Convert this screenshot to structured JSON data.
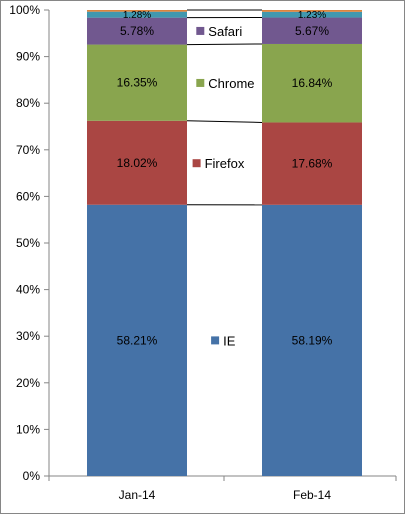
{
  "chart_data": {
    "type": "bar",
    "stacked": "percent",
    "categories": [
      "Jan-14",
      "Feb-14"
    ],
    "series": [
      {
        "name": "IE",
        "values": [
          58.21,
          58.19
        ],
        "labels": [
          "58.21%",
          "58.19%"
        ],
        "color": "#4572A7"
      },
      {
        "name": "Firefox",
        "values": [
          18.02,
          17.68
        ],
        "labels": [
          "18.02%",
          "17.68%"
        ],
        "color": "#AA4643"
      },
      {
        "name": "Chrome",
        "values": [
          16.35,
          16.84
        ],
        "labels": [
          "16.35%",
          "16.84%"
        ],
        "color": "#89A54E"
      },
      {
        "name": "Safari",
        "values": [
          5.78,
          5.67
        ],
        "labels": [
          "5.78%",
          "5.67%"
        ],
        "color": "#71588F"
      },
      {
        "name": "",
        "values": [
          1.28,
          1.23
        ],
        "labels": [
          "1.28%",
          "1.23%"
        ],
        "color": "#4198AF"
      },
      {
        "name": "",
        "values": [
          0.36,
          0.39
        ],
        "labels": [
          "",
          ""
        ],
        "color": "#DB843D"
      }
    ],
    "yticks": [
      "0%",
      "10%",
      "20%",
      "30%",
      "40%",
      "50%",
      "60%",
      "70%",
      "80%",
      "90%",
      "100%"
    ],
    "ylim": [
      0,
      100
    ],
    "grid": false,
    "legend": "between-bars"
  }
}
